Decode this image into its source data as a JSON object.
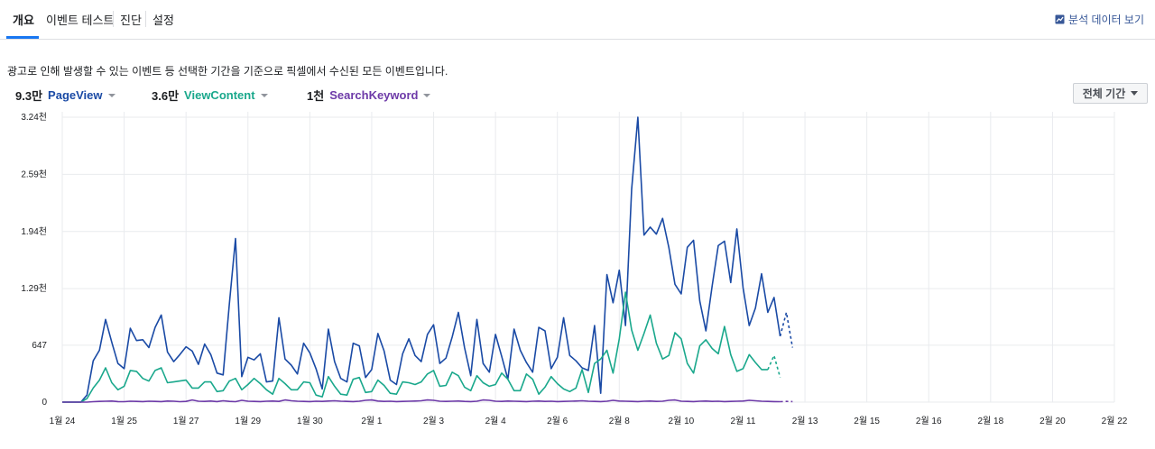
{
  "tabs": [
    {
      "label": "개요",
      "active": true
    },
    {
      "label": "이벤트 테스트",
      "active": false
    },
    {
      "label": "진단",
      "active": false
    },
    {
      "label": "설정",
      "active": false
    }
  ],
  "analyze_link": {
    "label": "분석 데이터 보기",
    "icon": "chart-icon"
  },
  "description": "광고로 인해 발생할 수 있는 이벤트 등 선택한 기간을 기준으로 픽셀에서 수신된 모든 이벤트입니다.",
  "metrics": [
    {
      "count": "9.3만",
      "name": "PageView",
      "color": "#1a4aa5"
    },
    {
      "count": "3.6만",
      "name": "ViewContent",
      "color": "#1aa88c"
    },
    {
      "count": "1천",
      "name": "SearchKeyword",
      "color": "#6d3aa8"
    }
  ],
  "range_button": {
    "label": "전체 기간"
  },
  "chart_data": {
    "type": "line",
    "title": "",
    "xlabel": "",
    "ylabel": "",
    "ylim": [
      0,
      3240
    ],
    "y_ticks": [
      0,
      647,
      1290,
      1940,
      2590,
      3240
    ],
    "y_tick_labels": [
      "0",
      "647",
      "1.29천",
      "1.94천",
      "2.59천",
      "3.24천"
    ],
    "x_ticks": [
      "1월 24",
      "1월 25",
      "1월 27",
      "1월 29",
      "1월 30",
      "2월 1",
      "2월 3",
      "2월 4",
      "2월 6",
      "2월 8",
      "2월 10",
      "2월 11",
      "2월 13",
      "2월 15",
      "2월 16",
      "2월 18",
      "2월 20",
      "2월 22"
    ],
    "x_tick_positions": [
      0,
      10,
      20,
      30,
      40,
      50,
      60,
      70,
      80,
      90,
      100,
      110,
      120,
      130,
      140,
      150,
      160,
      170
    ],
    "x_max": 170,
    "projected_points": 2,
    "series": [
      {
        "name": "PageView",
        "color": "#1a4aa5",
        "values": [
          0,
          0,
          0,
          0,
          80,
          470,
          590,
          940,
          680,
          440,
          380,
          840,
          700,
          710,
          620,
          850,
          990,
          570,
          460,
          540,
          630,
          580,
          430,
          660,
          540,
          330,
          310,
          1120,
          1860,
          290,
          510,
          480,
          550,
          230,
          240,
          960,
          490,
          420,
          320,
          670,
          560,
          380,
          150,
          830,
          460,
          270,
          230,
          670,
          640,
          280,
          370,
          780,
          580,
          250,
          200,
          550,
          720,
          530,
          460,
          770,
          880,
          440,
          500,
          740,
          1020,
          620,
          300,
          940,
          440,
          340,
          770,
          520,
          260,
          830,
          590,
          450,
          340,
          850,
          810,
          380,
          510,
          960,
          530,
          470,
          390,
          360,
          870,
          100,
          1450,
          1130,
          1500,
          870,
          2420,
          3240,
          1900,
          1990,
          1910,
          2090,
          1760,
          1340,
          1230,
          1760,
          1840,
          1150,
          810,
          1320,
          1780,
          1830,
          1360,
          1970,
          1300,
          870,
          1070,
          1460,
          1020,
          1190,
          750,
          1020,
          620
        ]
      },
      {
        "name": "ViewContent",
        "color": "#1aa88c",
        "values": [
          0,
          0,
          0,
          0,
          40,
          160,
          250,
          390,
          220,
          140,
          180,
          360,
          350,
          270,
          240,
          360,
          390,
          220,
          230,
          240,
          250,
          160,
          160,
          230,
          230,
          120,
          130,
          240,
          270,
          140,
          200,
          270,
          210,
          140,
          90,
          270,
          210,
          140,
          140,
          230,
          220,
          80,
          60,
          290,
          180,
          90,
          80,
          260,
          280,
          110,
          120,
          250,
          190,
          100,
          90,
          230,
          220,
          200,
          230,
          320,
          360,
          180,
          190,
          340,
          300,
          170,
          130,
          300,
          220,
          180,
          200,
          330,
          260,
          130,
          130,
          320,
          260,
          90,
          170,
          290,
          210,
          150,
          120,
          160,
          370,
          110,
          440,
          490,
          590,
          330,
          720,
          1250,
          820,
          590,
          780,
          990,
          670,
          490,
          530,
          790,
          720,
          440,
          330,
          640,
          710,
          610,
          550,
          860,
          540,
          350,
          380,
          540,
          450,
          370,
          370,
          530,
          280
        ]
      },
      {
        "name": "SearchKeyword",
        "color": "#6d3aa8",
        "values": [
          0,
          0,
          0,
          0,
          0,
          5,
          8,
          10,
          12,
          6,
          5,
          10,
          8,
          6,
          10,
          8,
          6,
          12,
          10,
          5,
          8,
          25,
          10,
          8,
          12,
          6,
          15,
          8,
          5,
          20,
          10,
          8,
          6,
          10,
          12,
          8,
          25,
          15,
          10,
          8,
          6,
          10,
          8,
          12,
          15,
          10,
          8,
          6,
          10,
          20,
          25,
          12,
          8,
          10,
          6,
          8,
          10,
          12,
          15,
          25,
          20,
          10,
          8,
          10,
          12,
          8,
          6,
          10,
          25,
          20,
          10,
          8,
          12,
          10,
          8,
          6,
          10,
          12,
          8,
          10,
          6,
          8,
          10,
          12,
          15,
          10,
          8,
          6,
          10,
          20,
          12,
          10,
          8,
          6,
          10,
          12,
          8,
          10,
          20,
          25,
          10,
          8,
          6,
          10,
          12,
          8,
          10,
          6,
          8,
          10,
          12,
          20,
          15,
          10,
          8,
          6,
          5,
          8,
          6
        ]
      }
    ]
  }
}
